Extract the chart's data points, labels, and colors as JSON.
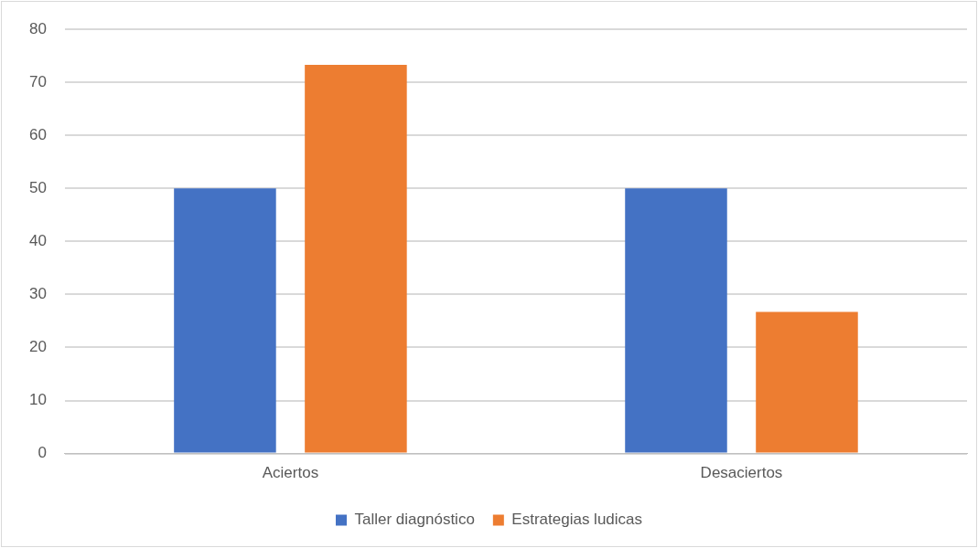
{
  "chart_data": {
    "type": "bar",
    "categories": [
      "Aciertos",
      "Desaciertos"
    ],
    "series": [
      {
        "name": "Taller diagnóstico",
        "color": "#4472c4",
        "values": [
          50,
          50
        ]
      },
      {
        "name": "Estrategias ludicas",
        "color": "#ed7d31",
        "values": [
          73.3,
          26.7
        ]
      }
    ],
    "ylim": [
      0,
      80
    ],
    "yticks": [
      0,
      10,
      20,
      30,
      40,
      50,
      60,
      70,
      80
    ],
    "grid": "y",
    "legend": "bottom"
  }
}
